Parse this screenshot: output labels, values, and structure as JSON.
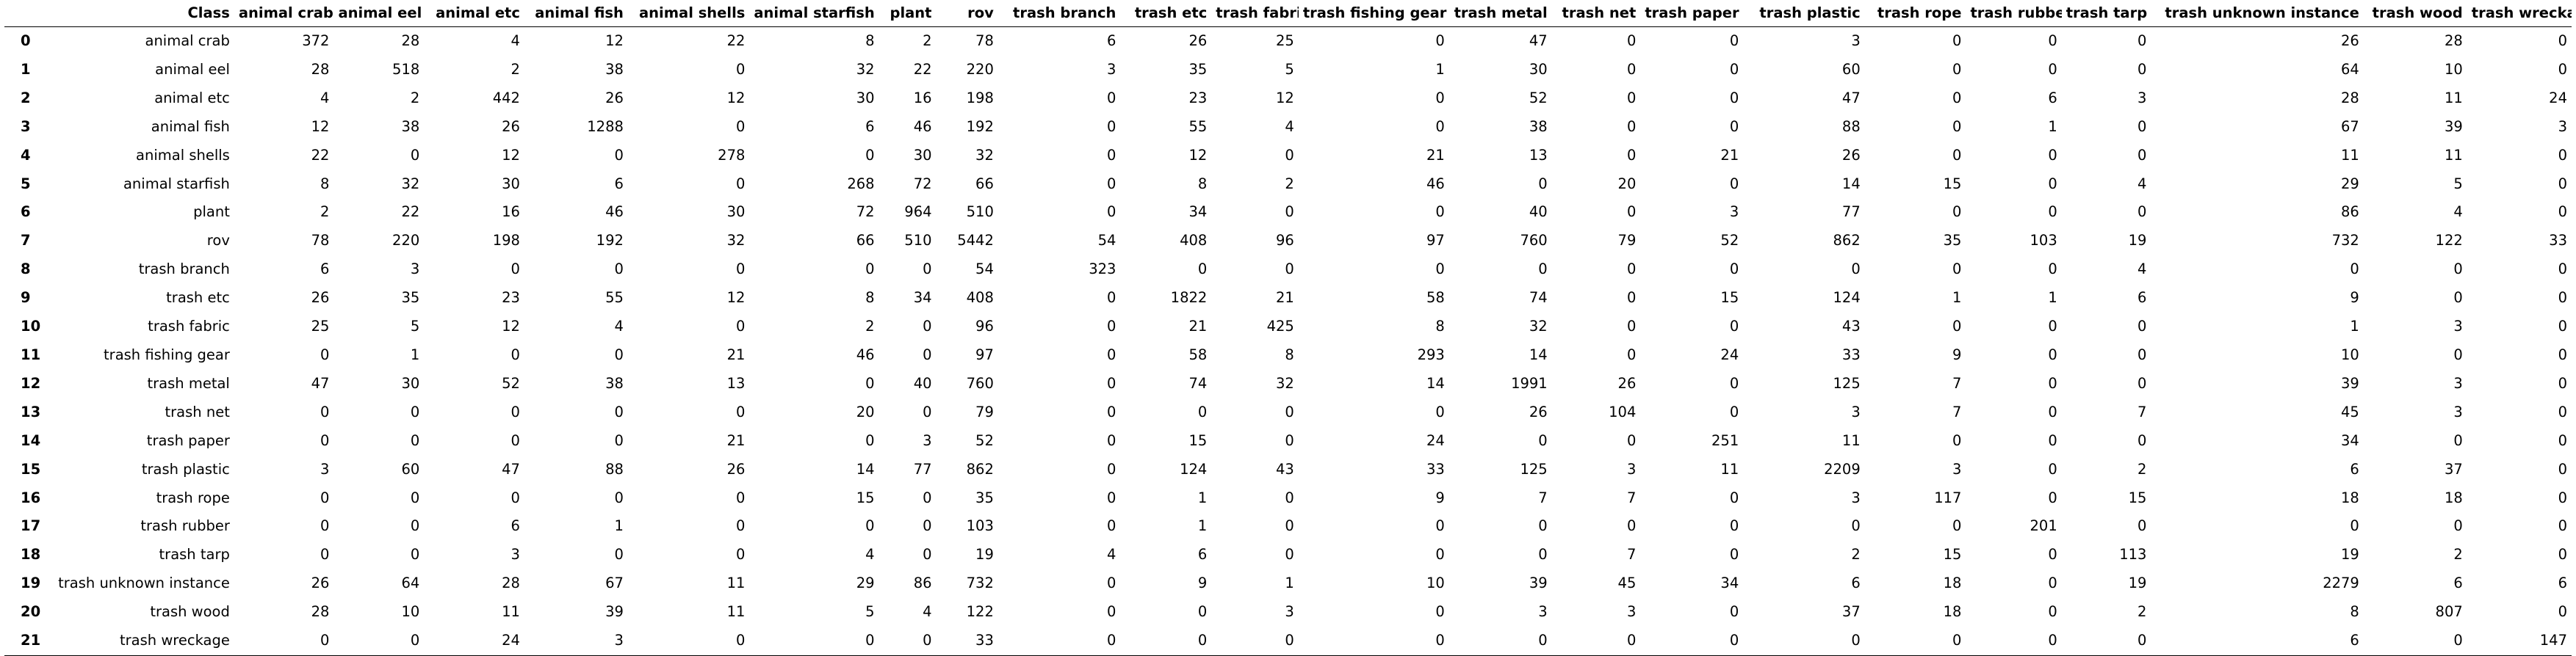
{
  "table": {
    "class_header": "Class",
    "columns": [
      "animal crab",
      "animal eel",
      "animal etc",
      "animal fish",
      "animal shells",
      "animal starfish",
      "plant",
      "rov",
      "trash branch",
      "trash etc",
      "trash fabric",
      "trash fishing gear",
      "trash metal",
      "trash net",
      "trash paper",
      "trash plastic",
      "trash rope",
      "trash rubber",
      "trash tarp",
      "trash unknown instance",
      "trash wood",
      "trash wreckage"
    ],
    "rows": [
      {
        "index": "0",
        "label": "animal crab",
        "values": [
          "372",
          "28",
          "4",
          "12",
          "22",
          "8",
          "2",
          "78",
          "6",
          "26",
          "25",
          "0",
          "47",
          "0",
          "0",
          "3",
          "0",
          "0",
          "0",
          "26",
          "28",
          "0"
        ]
      },
      {
        "index": "1",
        "label": "animal eel",
        "values": [
          "28",
          "518",
          "2",
          "38",
          "0",
          "32",
          "22",
          "220",
          "3",
          "35",
          "5",
          "1",
          "30",
          "0",
          "0",
          "60",
          "0",
          "0",
          "0",
          "64",
          "10",
          "0"
        ]
      },
      {
        "index": "2",
        "label": "animal etc",
        "values": [
          "4",
          "2",
          "442",
          "26",
          "12",
          "30",
          "16",
          "198",
          "0",
          "23",
          "12",
          "0",
          "52",
          "0",
          "0",
          "47",
          "0",
          "6",
          "3",
          "28",
          "11",
          "24"
        ]
      },
      {
        "index": "3",
        "label": "animal fish",
        "values": [
          "12",
          "38",
          "26",
          "1288",
          "0",
          "6",
          "46",
          "192",
          "0",
          "55",
          "4",
          "0",
          "38",
          "0",
          "0",
          "88",
          "0",
          "1",
          "0",
          "67",
          "39",
          "3"
        ]
      },
      {
        "index": "4",
        "label": "animal shells",
        "values": [
          "22",
          "0",
          "12",
          "0",
          "278",
          "0",
          "30",
          "32",
          "0",
          "12",
          "0",
          "21",
          "13",
          "0",
          "21",
          "26",
          "0",
          "0",
          "0",
          "11",
          "11",
          "0"
        ]
      },
      {
        "index": "5",
        "label": "animal starfish",
        "values": [
          "8",
          "32",
          "30",
          "6",
          "0",
          "268",
          "72",
          "66",
          "0",
          "8",
          "2",
          "46",
          "0",
          "20",
          "0",
          "14",
          "15",
          "0",
          "4",
          "29",
          "5",
          "0"
        ]
      },
      {
        "index": "6",
        "label": "plant",
        "values": [
          "2",
          "22",
          "16",
          "46",
          "30",
          "72",
          "964",
          "510",
          "0",
          "34",
          "0",
          "0",
          "40",
          "0",
          "3",
          "77",
          "0",
          "0",
          "0",
          "86",
          "4",
          "0"
        ]
      },
      {
        "index": "7",
        "label": "rov",
        "values": [
          "78",
          "220",
          "198",
          "192",
          "32",
          "66",
          "510",
          "5442",
          "54",
          "408",
          "96",
          "97",
          "760",
          "79",
          "52",
          "862",
          "35",
          "103",
          "19",
          "732",
          "122",
          "33"
        ]
      },
      {
        "index": "8",
        "label": "trash branch",
        "values": [
          "6",
          "3",
          "0",
          "0",
          "0",
          "0",
          "0",
          "54",
          "323",
          "0",
          "0",
          "0",
          "0",
          "0",
          "0",
          "0",
          "0",
          "0",
          "4",
          "0",
          "0",
          "0"
        ]
      },
      {
        "index": "9",
        "label": "trash etc",
        "values": [
          "26",
          "35",
          "23",
          "55",
          "12",
          "8",
          "34",
          "408",
          "0",
          "1822",
          "21",
          "58",
          "74",
          "0",
          "15",
          "124",
          "1",
          "1",
          "6",
          "9",
          "0",
          "0"
        ]
      },
      {
        "index": "10",
        "label": "trash fabric",
        "values": [
          "25",
          "5",
          "12",
          "4",
          "0",
          "2",
          "0",
          "96",
          "0",
          "21",
          "425",
          "8",
          "32",
          "0",
          "0",
          "43",
          "0",
          "0",
          "0",
          "1",
          "3",
          "0"
        ]
      },
      {
        "index": "11",
        "label": "trash fishing gear",
        "values": [
          "0",
          "1",
          "0",
          "0",
          "21",
          "46",
          "0",
          "97",
          "0",
          "58",
          "8",
          "293",
          "14",
          "0",
          "24",
          "33",
          "9",
          "0",
          "0",
          "10",
          "0",
          "0"
        ]
      },
      {
        "index": "12",
        "label": "trash metal",
        "values": [
          "47",
          "30",
          "52",
          "38",
          "13",
          "0",
          "40",
          "760",
          "0",
          "74",
          "32",
          "14",
          "1991",
          "26",
          "0",
          "125",
          "7",
          "0",
          "0",
          "39",
          "3",
          "0"
        ]
      },
      {
        "index": "13",
        "label": "trash net",
        "values": [
          "0",
          "0",
          "0",
          "0",
          "0",
          "20",
          "0",
          "79",
          "0",
          "0",
          "0",
          "0",
          "26",
          "104",
          "0",
          "3",
          "7",
          "0",
          "7",
          "45",
          "3",
          "0"
        ]
      },
      {
        "index": "14",
        "label": "trash paper",
        "values": [
          "0",
          "0",
          "0",
          "0",
          "21",
          "0",
          "3",
          "52",
          "0",
          "15",
          "0",
          "24",
          "0",
          "0",
          "251",
          "11",
          "0",
          "0",
          "0",
          "34",
          "0",
          "0"
        ]
      },
      {
        "index": "15",
        "label": "trash plastic",
        "values": [
          "3",
          "60",
          "47",
          "88",
          "26",
          "14",
          "77",
          "862",
          "0",
          "124",
          "43",
          "33",
          "125",
          "3",
          "11",
          "2209",
          "3",
          "0",
          "2",
          "6",
          "37",
          "0"
        ]
      },
      {
        "index": "16",
        "label": "trash rope",
        "values": [
          "0",
          "0",
          "0",
          "0",
          "0",
          "15",
          "0",
          "35",
          "0",
          "1",
          "0",
          "9",
          "7",
          "7",
          "0",
          "3",
          "117",
          "0",
          "15",
          "18",
          "18",
          "0"
        ]
      },
      {
        "index": "17",
        "label": "trash rubber",
        "values": [
          "0",
          "0",
          "6",
          "1",
          "0",
          "0",
          "0",
          "103",
          "0",
          "1",
          "0",
          "0",
          "0",
          "0",
          "0",
          "0",
          "0",
          "201",
          "0",
          "0",
          "0",
          "0"
        ]
      },
      {
        "index": "18",
        "label": "trash tarp",
        "values": [
          "0",
          "0",
          "3",
          "0",
          "0",
          "4",
          "0",
          "19",
          "4",
          "6",
          "0",
          "0",
          "0",
          "7",
          "0",
          "2",
          "15",
          "0",
          "113",
          "19",
          "2",
          "0"
        ]
      },
      {
        "index": "19",
        "label": "trash unknown instance",
        "values": [
          "26",
          "64",
          "28",
          "67",
          "11",
          "29",
          "86",
          "732",
          "0",
          "9",
          "1",
          "10",
          "39",
          "45",
          "34",
          "6",
          "18",
          "0",
          "19",
          "2279",
          "6",
          "6"
        ]
      },
      {
        "index": "20",
        "label": "trash wood",
        "values": [
          "28",
          "10",
          "11",
          "39",
          "11",
          "5",
          "4",
          "122",
          "0",
          "0",
          "3",
          "0",
          "3",
          "3",
          "0",
          "37",
          "18",
          "0",
          "2",
          "8",
          "807",
          "0"
        ]
      },
      {
        "index": "21",
        "label": "trash wreckage",
        "values": [
          "0",
          "0",
          "24",
          "3",
          "0",
          "0",
          "0",
          "33",
          "0",
          "0",
          "0",
          "0",
          "0",
          "0",
          "0",
          "0",
          "0",
          "0",
          "0",
          "6",
          "0",
          "147"
        ]
      }
    ]
  }
}
